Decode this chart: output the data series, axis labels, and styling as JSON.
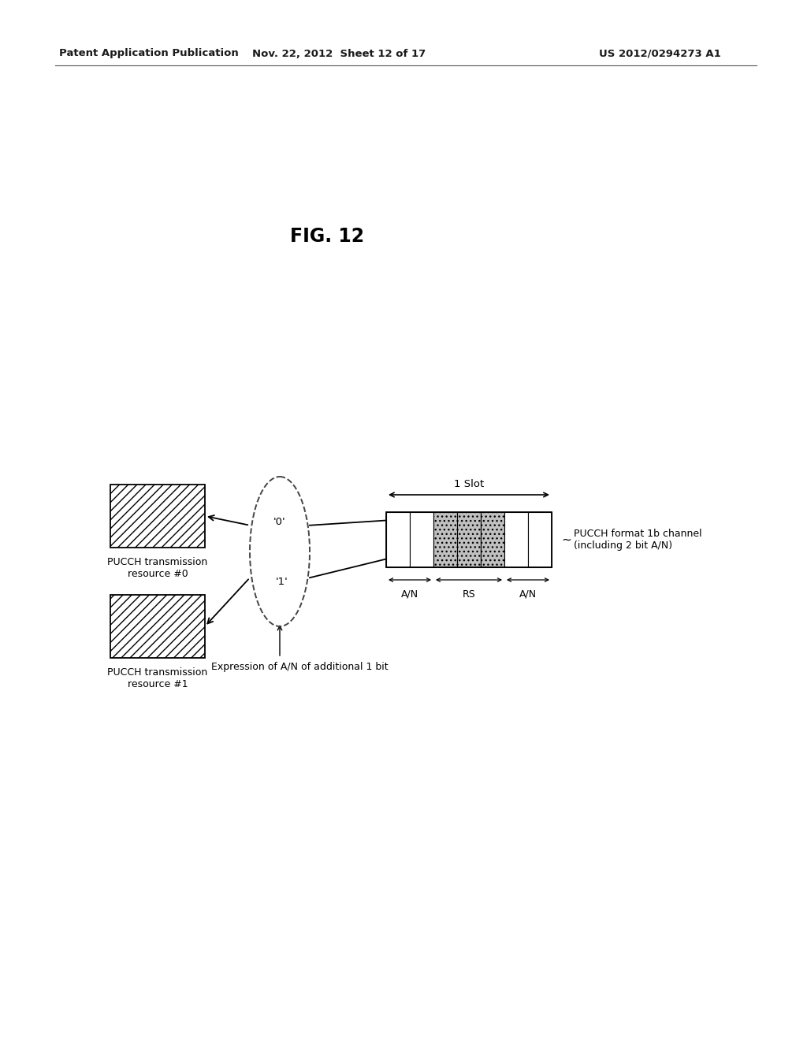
{
  "title": "FIG. 12",
  "header_left": "Patent Application Publication",
  "header_mid": "Nov. 22, 2012  Sheet 12 of 17",
  "header_right": "US 2012/0294273 A1",
  "bg_color": "#ffffff",
  "text_color": "#000000",
  "label_box0": "PUCCH transmission\nresource #0",
  "label_box1": "PUCCH transmission\nresource #1",
  "label_zero": "'0'",
  "label_one": "'1'",
  "label_slot": "1 Slot",
  "label_an_left": "A/N",
  "label_rs": "RS",
  "label_an_right": "A/N",
  "label_pucch_format": "PUCCH format 1b channel\n(including 2 bit A/N)",
  "label_expression": "Expression of A/N of additional 1 bit"
}
